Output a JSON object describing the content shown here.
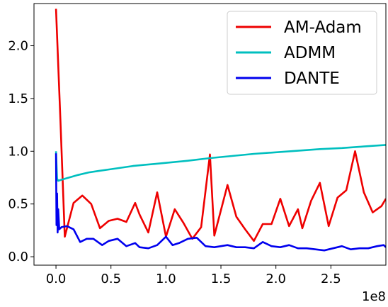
{
  "chart_data": {
    "type": "line",
    "title": "",
    "xlabel": "",
    "ylabel": "",
    "x_offset_label": "1e8",
    "xlim": [
      -0.2,
      3.0
    ],
    "ylim": [
      -0.08,
      2.4
    ],
    "xticks": [
      0.0,
      0.5,
      1.0,
      1.5,
      2.0,
      2.5
    ],
    "xtick_labels": [
      "0.0",
      "0.5",
      "1.0",
      "1.5",
      "2.0",
      "2.5"
    ],
    "yticks": [
      0.0,
      0.5,
      1.0,
      1.5,
      2.0
    ],
    "ytick_labels": [
      "0.0",
      "0.5",
      "1.0",
      "1.5",
      "2.0"
    ],
    "grid": false,
    "legend_position": "top-right",
    "series": [
      {
        "name": "AM-Adam",
        "color": "#ee0000",
        "x": [
          0.0,
          0.04,
          0.08,
          0.16,
          0.24,
          0.32,
          0.4,
          0.48,
          0.56,
          0.64,
          0.72,
          0.76,
          0.84,
          0.92,
          1.0,
          1.08,
          1.16,
          1.24,
          1.32,
          1.4,
          1.44,
          1.48,
          1.56,
          1.64,
          1.72,
          1.8,
          1.88,
          1.96,
          2.04,
          2.12,
          2.2,
          2.24,
          2.32,
          2.4,
          2.48,
          2.56,
          2.64,
          2.72,
          2.8,
          2.88,
          2.96,
          3.0
        ],
        "y": [
          2.35,
          1.3,
          0.19,
          0.51,
          0.58,
          0.5,
          0.27,
          0.34,
          0.36,
          0.33,
          0.51,
          0.4,
          0.23,
          0.61,
          0.19,
          0.45,
          0.32,
          0.17,
          0.28,
          0.97,
          0.2,
          0.36,
          0.68,
          0.38,
          0.26,
          0.15,
          0.31,
          0.31,
          0.55,
          0.29,
          0.45,
          0.27,
          0.53,
          0.7,
          0.29,
          0.56,
          0.63,
          1.0,
          0.61,
          0.42,
          0.48,
          0.55
        ]
      },
      {
        "name": "ADMM",
        "color": "#00bfbf",
        "x": [
          0.0,
          0.01,
          0.02,
          0.05,
          0.1,
          0.15,
          0.2,
          0.3,
          0.4,
          0.5,
          0.6,
          0.7,
          0.8,
          0.9,
          1.0,
          1.2,
          1.4,
          1.6,
          1.8,
          2.0,
          2.2,
          2.4,
          2.6,
          2.8,
          3.0
        ],
        "y": [
          1.0,
          0.74,
          0.72,
          0.73,
          0.745,
          0.76,
          0.775,
          0.8,
          0.815,
          0.83,
          0.845,
          0.86,
          0.87,
          0.88,
          0.89,
          0.91,
          0.935,
          0.955,
          0.975,
          0.99,
          1.005,
          1.02,
          1.03,
          1.045,
          1.06
        ]
      },
      {
        "name": "DANTE",
        "color": "#0000ee",
        "x": [
          0.0,
          0.005,
          0.01,
          0.015,
          0.02,
          0.03,
          0.05,
          0.1,
          0.16,
          0.22,
          0.28,
          0.34,
          0.42,
          0.48,
          0.56,
          0.64,
          0.72,
          0.76,
          0.84,
          0.92,
          1.0,
          1.06,
          1.12,
          1.2,
          1.28,
          1.36,
          1.44,
          1.5,
          1.56,
          1.64,
          1.72,
          1.8,
          1.88,
          1.96,
          2.04,
          2.12,
          2.2,
          2.28,
          2.36,
          2.44,
          2.52,
          2.6,
          2.68,
          2.76,
          2.84,
          2.92,
          2.98,
          3.0
        ],
        "y": [
          0.98,
          0.3,
          0.6,
          0.23,
          0.45,
          0.26,
          0.28,
          0.29,
          0.26,
          0.14,
          0.17,
          0.17,
          0.11,
          0.15,
          0.17,
          0.1,
          0.13,
          0.09,
          0.08,
          0.11,
          0.19,
          0.11,
          0.13,
          0.17,
          0.18,
          0.1,
          0.09,
          0.1,
          0.11,
          0.09,
          0.09,
          0.08,
          0.14,
          0.1,
          0.09,
          0.11,
          0.08,
          0.08,
          0.07,
          0.06,
          0.08,
          0.1,
          0.07,
          0.08,
          0.08,
          0.1,
          0.11,
          0.09
        ]
      }
    ]
  }
}
